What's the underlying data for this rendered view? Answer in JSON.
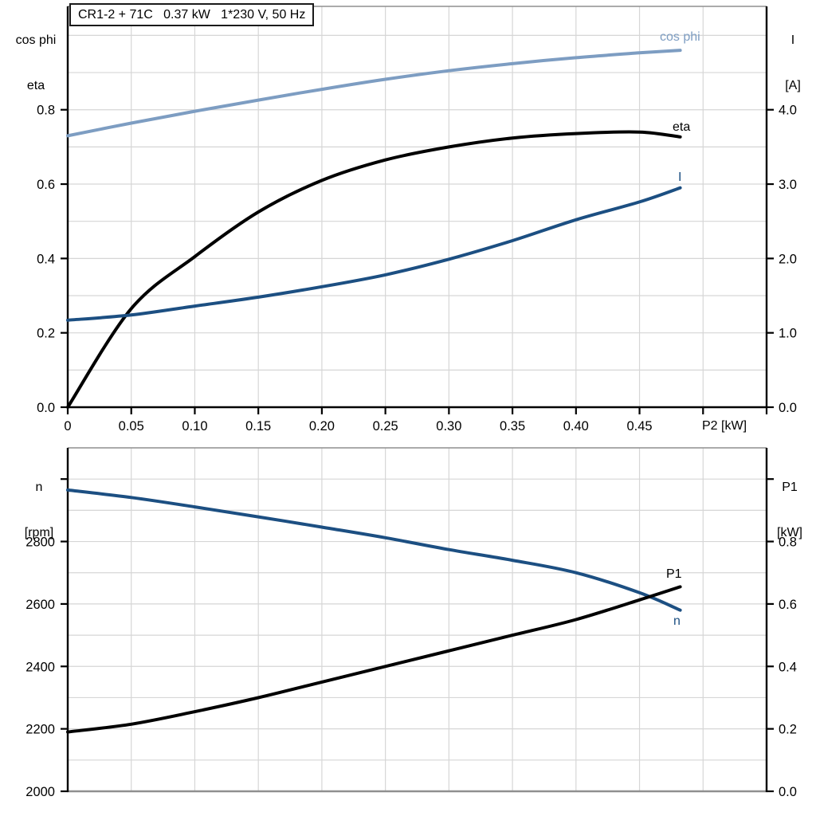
{
  "window": {
    "background": "#ffffff"
  },
  "colors": {
    "black": "#000000",
    "dark_blue": "#1c4f82",
    "light_blue": "#7d9dc2",
    "grid": "#d6d6d6",
    "frame": "#8f8f8f",
    "axis": "#000000"
  },
  "chart_data": [
    {
      "type": "line",
      "title": "CR1-2 + 71C   0.37 kW   1*230 V, 50 Hz",
      "xlabel": "P2 [kW]",
      "grid": true,
      "x_axis": {
        "min": 0,
        "max": 0.55,
        "grid_step": 0.05,
        "tick_values": [
          0,
          0.05,
          0.1,
          0.15,
          0.2,
          0.25,
          0.3,
          0.35,
          0.4,
          0.45,
          0.5,
          0.55
        ],
        "tick_labels": [
          "0",
          "0.05",
          "0.10",
          "0.15",
          "0.20",
          "0.25",
          "0.30",
          "0.35",
          "0.40",
          "0.45",
          "",
          ""
        ]
      },
      "left_axis": {
        "title_lines": [
          "cos phi",
          "eta"
        ],
        "range": [
          0,
          1.078
        ],
        "grid_step": 0.1,
        "tick_values": [
          0,
          0.2,
          0.4,
          0.6,
          0.8
        ],
        "tick_labels": [
          "0.0",
          "0.2",
          "0.4",
          "0.6",
          "0.8"
        ]
      },
      "right_axis": {
        "title_lines": [
          "I",
          "[A]"
        ],
        "range": [
          0,
          5.39
        ],
        "tick_values": [
          0,
          1,
          2,
          3,
          4
        ],
        "tick_labels": [
          "0.0",
          "1.0",
          "2.0",
          "3.0",
          "4.0"
        ]
      },
      "x": [
        0,
        0.05,
        0.1,
        0.15,
        0.2,
        0.25,
        0.3,
        0.35,
        0.4,
        0.45,
        0.482
      ],
      "series": [
        {
          "name": "cos phi",
          "label": "cos phi",
          "axis": "left",
          "color_key": "light_blue",
          "values": [
            0.73,
            0.764,
            0.796,
            0.826,
            0.855,
            0.882,
            0.905,
            0.924,
            0.94,
            0.953,
            0.96
          ]
        },
        {
          "name": "eta",
          "label": "eta",
          "axis": "left",
          "color_key": "black",
          "values": [
            0.0,
            0.265,
            0.405,
            0.525,
            0.61,
            0.665,
            0.7,
            0.724,
            0.736,
            0.74,
            0.727
          ]
        },
        {
          "name": "I",
          "label": "I",
          "axis": "right",
          "color_key": "dark_blue",
          "values": [
            1.17,
            1.24,
            1.36,
            1.48,
            1.62,
            1.78,
            1.99,
            2.24,
            2.52,
            2.76,
            2.95
          ]
        }
      ]
    },
    {
      "type": "line",
      "title": "",
      "xlabel": "",
      "grid": true,
      "x_axis": {
        "min": 0,
        "max": 0.55,
        "grid_step": 0.05,
        "tick_values": [],
        "tick_labels": []
      },
      "left_axis": {
        "title_lines": [
          "n",
          "[rpm]"
        ],
        "range": [
          2000,
          3100
        ],
        "grid_step": 100,
        "tick_values": [
          2000,
          2200,
          2400,
          2600,
          2800,
          3000
        ],
        "tick_labels": [
          "2000",
          "2200",
          "2400",
          "2600",
          "2800",
          ""
        ]
      },
      "right_axis": {
        "title_lines": [
          "P1",
          "[kW]"
        ],
        "range": [
          0,
          1.1
        ],
        "tick_values": [
          0,
          0.2,
          0.4,
          0.6,
          0.8,
          1.0
        ],
        "tick_labels": [
          "0.0",
          "0.2",
          "0.4",
          "0.6",
          "0.8",
          ""
        ]
      },
      "x": [
        0,
        0.05,
        0.1,
        0.15,
        0.2,
        0.25,
        0.3,
        0.35,
        0.4,
        0.45,
        0.482
      ],
      "series": [
        {
          "name": "n",
          "label": "n",
          "axis": "left",
          "color_key": "dark_blue",
          "values": [
            2965,
            2941,
            2911,
            2879,
            2846,
            2812,
            2774,
            2740,
            2700,
            2636,
            2580
          ]
        },
        {
          "name": "P1",
          "label": "P1",
          "axis": "right",
          "color_key": "black",
          "values": [
            0.19,
            0.215,
            0.255,
            0.3,
            0.35,
            0.4,
            0.45,
            0.5,
            0.55,
            0.613,
            0.655
          ]
        }
      ]
    }
  ]
}
